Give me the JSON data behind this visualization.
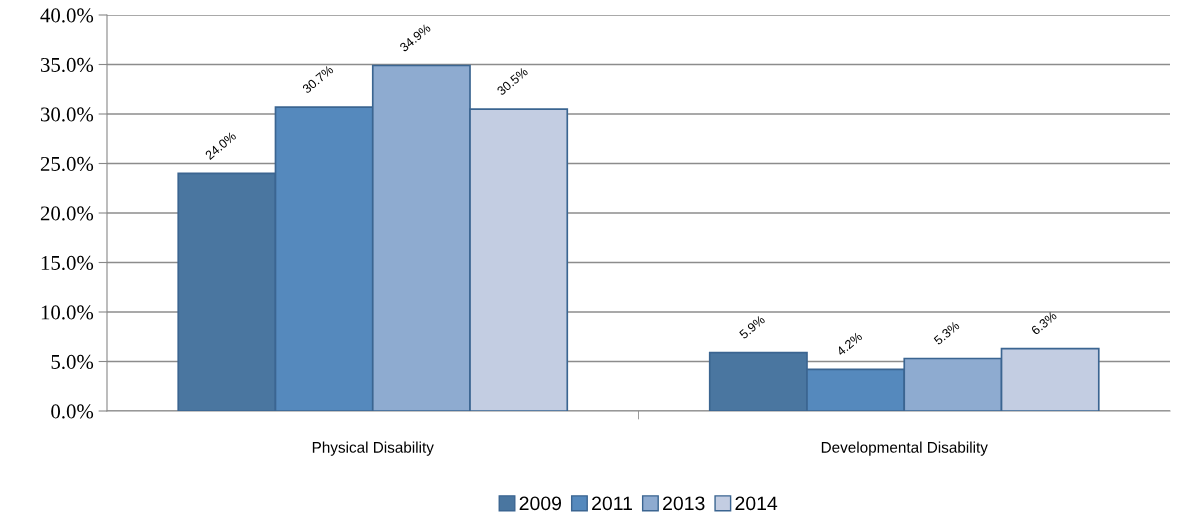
{
  "chart_data": {
    "type": "bar",
    "categories": [
      "Physical Disability",
      "Developmental Disability"
    ],
    "series": [
      {
        "name": "2009",
        "color": "#4a76a0",
        "values": [
          24.0,
          5.9
        ],
        "value_labels": [
          "24.0%",
          "5.9%"
        ]
      },
      {
        "name": "2011",
        "color": "#5589bd",
        "values": [
          30.7,
          4.2
        ],
        "value_labels": [
          "30.7%",
          "4.2%"
        ]
      },
      {
        "name": "2013",
        "color": "#8eabd0",
        "values": [
          34.9,
          5.3
        ],
        "value_labels": [
          "34.9%",
          "5.3%"
        ]
      },
      {
        "name": "2014",
        "color": "#c3cde2",
        "values": [
          30.5,
          6.3
        ],
        "value_labels": [
          "30.5%",
          "6.3%"
        ]
      }
    ],
    "ylim": [
      0,
      40
    ],
    "yticks": [
      {
        "value": 0,
        "label": "0.0%"
      },
      {
        "value": 5,
        "label": "5.0%"
      },
      {
        "value": 10,
        "label": "10.0%"
      },
      {
        "value": 15,
        "label": "15.0%"
      },
      {
        "value": 20,
        "label": "20.0%"
      },
      {
        "value": 25,
        "label": "25.0%"
      },
      {
        "value": 30,
        "label": "30.0%"
      },
      {
        "value": 35,
        "label": "35.0%"
      },
      {
        "value": 40,
        "label": "40.0%"
      }
    ],
    "grid": "y",
    "legend": "bottom"
  }
}
